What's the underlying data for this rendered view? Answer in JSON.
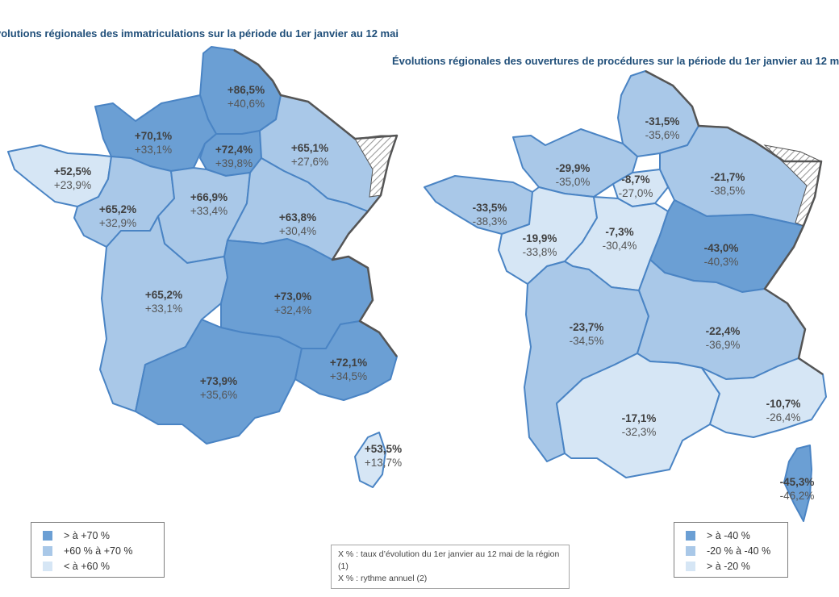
{
  "titles": {
    "left": "volutions régionales des immatriculations sur la période du 1er janvier au 12 mai",
    "right": "Évolutions régionales des ouvertures de procédures sur la période du 1er janvier au 12 ma"
  },
  "colors": {
    "dark": "#6b9fd4",
    "mid": "#a9c8e8",
    "light": "#d6e6f5",
    "border": "#4a84c4",
    "frontier": "#555555"
  },
  "left_map": {
    "regions": [
      {
        "name": "hauts-de-france",
        "class": "dark",
        "value": "+86,5%",
        "annual": "+40,6%"
      },
      {
        "name": "normandie",
        "class": "dark",
        "value": "+70,1%",
        "annual": "+33,1%"
      },
      {
        "name": "ile-de-france",
        "class": "dark",
        "value": "+72,4%",
        "annual": "+39,8%"
      },
      {
        "name": "grand-est",
        "class": "mid",
        "value": "+65,1%",
        "annual": "+27,6%"
      },
      {
        "name": "bretagne",
        "class": "light",
        "value": "+52,5%",
        "annual": "+23,9%"
      },
      {
        "name": "pays-de-la-loire",
        "class": "mid",
        "value": "+65,2%",
        "annual": "+32,9%"
      },
      {
        "name": "centre-val-de-loire",
        "class": "mid",
        "value": "+66,9%",
        "annual": "+33,4%"
      },
      {
        "name": "bourgogne-franche-comte",
        "class": "mid",
        "value": "+63,8%",
        "annual": "+30,4%"
      },
      {
        "name": "nouvelle-aquitaine",
        "class": "mid",
        "value": "+65,2%",
        "annual": "+33,1%"
      },
      {
        "name": "auvergne-rhone-alpes",
        "class": "dark",
        "value": "+73,0%",
        "annual": "+32,4%"
      },
      {
        "name": "occitanie",
        "class": "dark",
        "value": "+73,9%",
        "annual": "+35,6%"
      },
      {
        "name": "provence-alpes-cote-d-azur",
        "class": "dark",
        "value": "+72,1%",
        "annual": "+34,5%"
      },
      {
        "name": "corse",
        "class": "light",
        "value": "+53,5%",
        "annual": "+13,7%"
      }
    ],
    "legend": [
      {
        "class": "dark",
        "label": "> à +70 %"
      },
      {
        "class": "mid",
        "label": "+60 % à +70 %"
      },
      {
        "class": "light",
        "label": "< à +60 %"
      }
    ]
  },
  "right_map": {
    "regions": [
      {
        "name": "hauts-de-france",
        "class": "mid",
        "value": "-31,5%",
        "annual": "-35,6%"
      },
      {
        "name": "normandie",
        "class": "mid",
        "value": "-29,9%",
        "annual": "-35,0%"
      },
      {
        "name": "ile-de-france",
        "class": "light",
        "value": "-8,7%",
        "annual": "-27,0%"
      },
      {
        "name": "grand-est",
        "class": "mid",
        "value": "-21,7%",
        "annual": "-38,5%"
      },
      {
        "name": "bretagne",
        "class": "mid",
        "value": "-33,5%",
        "annual": "-38,3%"
      },
      {
        "name": "pays-de-la-loire",
        "class": "light",
        "value": "-19,9%",
        "annual": "-33,8%"
      },
      {
        "name": "centre-val-de-loire",
        "class": "light",
        "value": "-7,3%",
        "annual": "-30,4%"
      },
      {
        "name": "bourgogne-franche-comte",
        "class": "dark",
        "value": "-43,0%",
        "annual": "-40,3%"
      },
      {
        "name": "nouvelle-aquitaine",
        "class": "mid",
        "value": "-23,7%",
        "annual": "-34,5%"
      },
      {
        "name": "auvergne-rhone-alpes",
        "class": "mid",
        "value": "-22,4%",
        "annual": "-36,9%"
      },
      {
        "name": "occitanie",
        "class": "light",
        "value": "-17,1%",
        "annual": "-32,3%"
      },
      {
        "name": "provence-alpes-cote-d-azur",
        "class": "light",
        "value": "-10,7%",
        "annual": "-26,4%"
      },
      {
        "name": "corse",
        "class": "dark",
        "value": "-45,3%",
        "annual": "-46,2%"
      }
    ],
    "legend": [
      {
        "class": "dark",
        "label": "> à -40 %"
      },
      {
        "class": "mid",
        "label": "-20 % à -40 %"
      },
      {
        "class": "light",
        "label": "> à -20 %"
      }
    ]
  },
  "note": {
    "line1": "X % : taux d’évolution du 1er janvier au 12 mai de la région (1)",
    "line2": "X % : rythme annuel (2)"
  }
}
